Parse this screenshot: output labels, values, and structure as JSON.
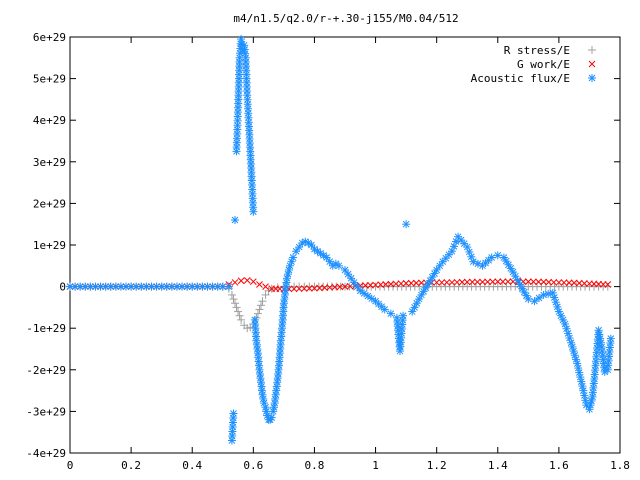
{
  "chart_data": {
    "type": "scatter",
    "title": "m4/n1.5/q2.0/r-+.30-j155/M0.04/512",
    "xlabel": "",
    "ylabel": "",
    "xlim": [
      0,
      1.8
    ],
    "ylim": [
      -4e+29,
      6e+29
    ],
    "x_ticks": [
      {
        "value": 0,
        "label": "0"
      },
      {
        "value": 0.2,
        "label": "0.2"
      },
      {
        "value": 0.4,
        "label": "0.4"
      },
      {
        "value": 0.6,
        "label": "0.6"
      },
      {
        "value": 0.8,
        "label": "0.8"
      },
      {
        "value": 1.0,
        "label": "1"
      },
      {
        "value": 1.2,
        "label": "1.2"
      },
      {
        "value": 1.4,
        "label": "1.4"
      },
      {
        "value": 1.6,
        "label": "1.6"
      },
      {
        "value": 1.8,
        "label": "1.8"
      }
    ],
    "y_ticks": [
      {
        "value": -4e+29,
        "label": "-4e+29"
      },
      {
        "value": -3e+29,
        "label": "-3e+29"
      },
      {
        "value": -2e+29,
        "label": "-2e+29"
      },
      {
        "value": -1e+29,
        "label": "-1e+29"
      },
      {
        "value": 0,
        "label": "0"
      },
      {
        "value": 1e+29,
        "label": "1e+29"
      },
      {
        "value": 2e+29,
        "label": "2e+29"
      },
      {
        "value": 3e+29,
        "label": "3e+29"
      },
      {
        "value": 4e+29,
        "label": "4e+29"
      },
      {
        "value": 5e+29,
        "label": "5e+29"
      },
      {
        "value": 6e+29,
        "label": "6e+29"
      }
    ],
    "grid": false,
    "legend": "top-right",
    "series": [
      {
        "name": "R stress/E",
        "marker": "plus",
        "color": "#a0a0a0",
        "x": [
          0.0,
          0.05,
          0.1,
          0.15,
          0.2,
          0.25,
          0.3,
          0.35,
          0.4,
          0.45,
          0.5,
          0.52,
          0.53,
          0.54,
          0.55,
          0.56,
          0.57,
          0.58,
          0.59,
          0.6,
          0.61,
          0.62,
          0.63,
          0.64,
          0.65,
          0.66,
          0.68,
          0.7,
          0.75,
          0.8,
          0.9,
          1.0,
          1.1,
          1.2,
          1.3,
          1.4,
          1.5,
          1.6,
          1.7,
          1.76
        ],
        "y": [
          0,
          0,
          0,
          0,
          0,
          0,
          0,
          0,
          0,
          0,
          0,
          -5e+27,
          -2e+28,
          -4e+28,
          -6e+28,
          -8e+28,
          -9.3e+28,
          -1e+29,
          -9.8e+28,
          -9e+28,
          -7.5e+28,
          -5.5e+28,
          -3.5e+28,
          -2e+28,
          -1e+28,
          -5e+27,
          -2e+27,
          0,
          0,
          0,
          0,
          0,
          0,
          0,
          0,
          0,
          0,
          0,
          0,
          0
        ]
      },
      {
        "name": "G work/E",
        "marker": "cross",
        "color": "#ff0000",
        "x": [
          0.0,
          0.05,
          0.1,
          0.15,
          0.2,
          0.25,
          0.3,
          0.35,
          0.4,
          0.45,
          0.5,
          0.52,
          0.54,
          0.56,
          0.58,
          0.6,
          0.62,
          0.64,
          0.66,
          0.7,
          0.75,
          0.8,
          0.85,
          0.9,
          0.95,
          1.0,
          1.05,
          1.1,
          1.15,
          1.2,
          1.25,
          1.3,
          1.35,
          1.4,
          1.45,
          1.5,
          1.55,
          1.6,
          1.65,
          1.7,
          1.76
        ],
        "y": [
          0,
          0,
          0,
          0,
          0,
          0,
          0,
          0,
          0,
          0,
          0,
          5e+27,
          1e+28,
          1.4e+28,
          1.5e+28,
          1.2e+28,
          5e+27,
          0.0,
          -5e+27,
          -6e+27,
          -5e+27,
          -4e+27,
          -2e+27,
          0.0,
          2e+27,
          4e+27,
          6e+27,
          8e+27,
          9e+27,
          1e+28,
          1e+28,
          1.1e+28,
          1.1e+28,
          1.2e+28,
          1.2e+28,
          1.2e+28,
          1.1e+28,
          1e+28,
          9e+27,
          7e+27,
          5e+27
        ]
      },
      {
        "name": "Acoustic flux/E",
        "marker": "star",
        "color": "#1e90ff",
        "x": [
          0.0,
          0.05,
          0.1,
          0.15,
          0.2,
          0.25,
          0.3,
          0.35,
          0.4,
          0.45,
          0.5,
          0.52,
          0.53,
          0.535,
          0.54,
          0.545,
          0.55,
          0.555,
          0.56,
          0.565,
          0.57,
          0.575,
          0.58,
          0.585,
          0.59,
          0.595,
          0.6,
          0.605,
          0.61,
          0.615,
          0.62,
          0.625,
          0.63,
          0.635,
          0.64,
          0.645,
          0.65,
          0.655,
          0.66,
          0.665,
          0.67,
          0.675,
          0.68,
          0.685,
          0.69,
          0.695,
          0.7,
          0.705,
          0.71,
          0.72,
          0.73,
          0.74,
          0.75,
          0.76,
          0.77,
          0.78,
          0.79,
          0.8,
          0.81,
          0.82,
          0.83,
          0.84,
          0.85,
          0.86,
          0.87,
          0.88,
          0.9,
          0.92,
          0.95,
          1.0,
          1.03,
          1.05,
          1.07,
          1.08,
          1.09,
          1.1,
          1.12,
          1.15,
          1.2,
          1.22,
          1.25,
          1.27,
          1.3,
          1.32,
          1.35,
          1.38,
          1.4,
          1.42,
          1.45,
          1.48,
          1.5,
          1.52,
          1.55,
          1.58,
          1.6,
          1.62,
          1.64,
          1.66,
          1.68,
          1.69,
          1.7,
          1.71,
          1.72,
          1.73,
          1.74,
          1.75,
          1.76,
          1.77
        ],
        "y": [
          0,
          0,
          0,
          0,
          0,
          0,
          0,
          0,
          0,
          0,
          0,
          0,
          -3.7e+29,
          -3.05e+29,
          1.6e+29,
          3.25e+29,
          4.3e+29,
          5.5e+29,
          5.95e+29,
          5.7e+29,
          5.8e+29,
          5.5e+29,
          4.6e+29,
          3.95e+29,
          3.25e+29,
          2.55e+29,
          1.8e+29,
          -8e+28,
          -1.3e+29,
          -1.6e+29,
          -2e+29,
          -2.3e+29,
          -2.6e+29,
          -2.8e+29,
          -2.9e+29,
          -3.1e+29,
          -3.2e+29,
          -3.2e+29,
          -3.15e+29,
          -3e+29,
          -2.8e+29,
          -2.5e+29,
          -2.2e+29,
          -1.8e+29,
          -1.3e+29,
          -9e+28,
          -4e+28,
          -1e+28,
          2e+28,
          5e+28,
          7e+28,
          8.5e+28,
          9.5e+28,
          1.05e+29,
          1.08e+29,
          1.05e+29,
          1e+29,
          9e+28,
          8.5e+28,
          8e+28,
          7.5e+28,
          7e+28,
          6e+28,
          5e+28,
          5.5e+28,
          5e+28,
          4e+28,
          2e+28,
          -1e+28,
          -3.5e+28,
          -5.5e+28,
          -6.5e+28,
          -7.5e+28,
          -1.55e+29,
          -7e+28,
          1.5e+29,
          -6e+28,
          -2e+28,
          4e+28,
          6e+28,
          8.5e+28,
          1.2e+29,
          9.5e+28,
          6e+28,
          5e+28,
          7e+28,
          7.5e+28,
          7e+28,
          3.5e+28,
          -5e+27,
          -3e+28,
          -3.5e+28,
          -2e+28,
          -1.5e+28,
          -6e+28,
          -9e+28,
          -1.35e+29,
          -1.85e+29,
          -2.5e+29,
          -2.85e+29,
          -2.95e+29,
          -2.65e+29,
          -1.9e+29,
          -1.05e+29,
          -1.45e+29,
          -2.05e+29,
          -2e+29,
          -1.25e+29
        ]
      }
    ]
  }
}
